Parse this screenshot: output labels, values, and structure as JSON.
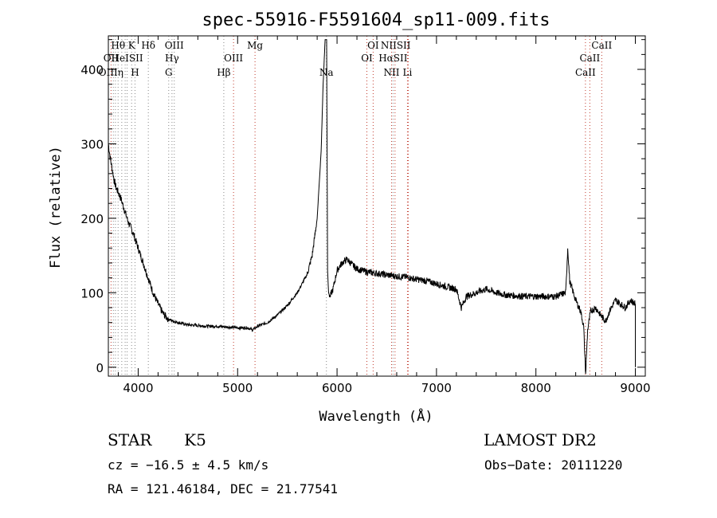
{
  "chart_data": {
    "type": "line",
    "title": "spec-55916-F5591604_sp11-009.fits",
    "xlabel": "Wavelength (Å)",
    "ylabel": "Flux (relative)",
    "xlim": [
      3700,
      9100
    ],
    "ylim": [
      -12,
      445
    ],
    "x_ticks": [
      4000,
      5000,
      6000,
      7000,
      8000,
      9000
    ],
    "y_ticks": [
      0,
      100,
      200,
      300,
      400
    ],
    "grid": false,
    "series": [
      {
        "x": [
          3700,
          3720,
          3740,
          3760,
          3780,
          3800,
          3830,
          3860,
          3900,
          3950,
          4000,
          4050,
          4100,
          4150,
          4200,
          4250,
          4300,
          4350,
          4400,
          4500,
          4600,
          4700,
          4800,
          4900,
          5000,
          5100,
          5150,
          5200,
          5300,
          5400,
          5500,
          5600,
          5700,
          5750,
          5800,
          5840,
          5860,
          5880,
          5895,
          5905,
          5915,
          5930,
          5960,
          6000,
          6050,
          6100,
          6150,
          6200,
          6300,
          6400,
          6500,
          6600,
          6700,
          6800,
          6900,
          7000,
          7100,
          7200,
          7250,
          7300,
          7400,
          7500,
          7600,
          7700,
          7800,
          7900,
          8000,
          8100,
          8200,
          8300,
          8320,
          8340,
          8400,
          8450,
          8480,
          8500,
          8520,
          8550,
          8600,
          8650,
          8700,
          8750,
          8800,
          8850,
          8900,
          8950,
          9000
        ],
        "y": [
          300,
          280,
          265,
          250,
          240,
          235,
          225,
          212,
          195,
          180,
          160,
          140,
          120,
          100,
          85,
          72,
          65,
          62,
          60,
          57,
          56,
          55,
          55,
          54,
          53,
          53,
          50,
          55,
          60,
          70,
          83,
          100,
          125,
          150,
          200,
          290,
          380,
          440,
          440,
          130,
          100,
          95,
          105,
          130,
          140,
          145,
          138,
          132,
          128,
          126,
          124,
          122,
          121,
          118,
          116,
          112,
          108,
          105,
          80,
          95,
          100,
          105,
          100,
          97,
          96,
          95,
          95,
          95,
          95,
          100,
          160,
          115,
          90,
          75,
          55,
          -10,
          50,
          75,
          80,
          70,
          62,
          78,
          90,
          85,
          80,
          90,
          85
        ]
      }
    ],
    "line_markers": [
      {
        "label": "Hθ",
        "x": 3798,
        "row": 0
      },
      {
        "label": "K",
        "x": 3934,
        "row": 0
      },
      {
        "label": "Hδ",
        "x": 4102,
        "row": 0
      },
      {
        "label": "OIII",
        "x": 4363,
        "row": 0
      },
      {
        "label": "Mg",
        "x": 5175,
        "row": 0
      },
      {
        "label": "OI",
        "x": 6363,
        "row": 0
      },
      {
        "label": "NIISII",
        "x": 6590,
        "row": 0
      },
      {
        "label": "CaII",
        "x": 8662,
        "row": 0
      },
      {
        "label": "OII",
        "x": 3727,
        "row": 1
      },
      {
        "label": "HeISII",
        "x": 3889,
        "row": 1
      },
      {
        "label": "Hγ",
        "x": 4340,
        "row": 1
      },
      {
        "label": "OIII",
        "x": 4959,
        "row": 1
      },
      {
        "label": "OI",
        "x": 6300,
        "row": 1
      },
      {
        "label": "HαSII",
        "x": 6563,
        "row": 1
      },
      {
        "label": "CaII",
        "x": 8542,
        "row": 1
      },
      {
        "label": "OIIIη",
        "x": 3727,
        "row": 2
      },
      {
        "label": "H",
        "x": 3968,
        "row": 2
      },
      {
        "label": "G",
        "x": 4307,
        "row": 2
      },
      {
        "label": "Hβ",
        "x": 4861,
        "row": 2
      },
      {
        "label": "Na",
        "x": 5893,
        "row": 2
      },
      {
        "label": "NII",
        "x": 6548,
        "row": 2
      },
      {
        "label": "Li",
        "x": 6708,
        "row": 2
      },
      {
        "label": "CaII",
        "x": 8498,
        "row": 2
      }
    ],
    "marker_lines": [
      {
        "x": 3727,
        "color": "#c0392b"
      },
      {
        "x": 3750,
        "color": "#888888"
      },
      {
        "x": 3771,
        "color": "#888888"
      },
      {
        "x": 3798,
        "color": "#888888"
      },
      {
        "x": 3835,
        "color": "#888888"
      },
      {
        "x": 3869,
        "color": "#888888"
      },
      {
        "x": 3889,
        "color": "#888888"
      },
      {
        "x": 3934,
        "color": "#888888"
      },
      {
        "x": 3968,
        "color": "#888888"
      },
      {
        "x": 4102,
        "color": "#888888"
      },
      {
        "x": 4307,
        "color": "#888888"
      },
      {
        "x": 4340,
        "color": "#888888"
      },
      {
        "x": 4363,
        "color": "#888888"
      },
      {
        "x": 4861,
        "color": "#888888"
      },
      {
        "x": 4959,
        "color": "#c0392b"
      },
      {
        "x": 5175,
        "color": "#c0392b"
      },
      {
        "x": 5893,
        "color": "#888888"
      },
      {
        "x": 6300,
        "color": "#c0392b"
      },
      {
        "x": 6363,
        "color": "#c0392b"
      },
      {
        "x": 6548,
        "color": "#c0392b"
      },
      {
        "x": 6563,
        "color": "#888888"
      },
      {
        "x": 6583,
        "color": "#c0392b"
      },
      {
        "x": 6708,
        "color": "#c0392b"
      },
      {
        "x": 6716,
        "color": "#c0392b"
      },
      {
        "x": 8498,
        "color": "#c0392b"
      },
      {
        "x": 8542,
        "color": "#c0392b"
      },
      {
        "x": 8662,
        "color": "#c0392b"
      }
    ]
  },
  "info": {
    "object_class": "STAR",
    "subclass": "K5",
    "survey": "LAMOST DR2",
    "redshift": "cz = −16.5 ± 4.5 km/s",
    "obs_date": "Obs−Date: 20111220",
    "coords": "RA = 121.46184, DEC =  21.77541"
  }
}
